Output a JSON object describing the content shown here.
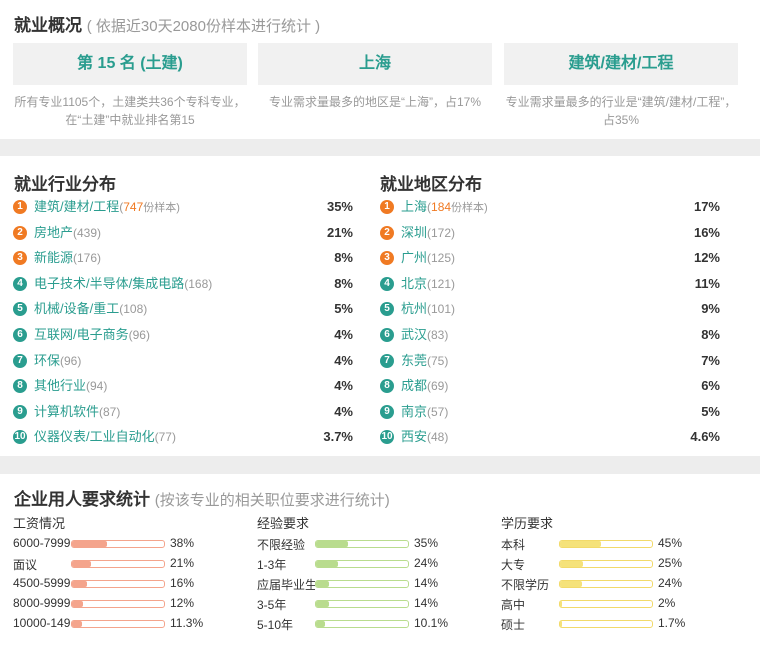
{
  "overview": {
    "title": "就业概况",
    "subtitle": "( 依据近30天2080份样本进行统计 )",
    "boxes": [
      {
        "label": "第 15 名 (土建)",
        "desc": "所有专业1105个，土建类共36个专科专业，在“土建”中就业排名第15"
      },
      {
        "label": "上海",
        "desc": "专业需求量最多的地区是“上海”，占17%"
      },
      {
        "label": "建筑/建材/工程",
        "desc": "专业需求量最多的行业是“建筑/建材/工程”，占35%"
      }
    ]
  },
  "industry": {
    "title": "就业行业分布",
    "sample_suffix": "份样本)",
    "items": [
      {
        "rank": "1",
        "name": "建筑/建材/工程",
        "count": "747",
        "pct": "35%"
      },
      {
        "rank": "2",
        "name": "房地产",
        "count": "(439)",
        "pct": "21%"
      },
      {
        "rank": "3",
        "name": "新能源",
        "count": "(176)",
        "pct": "8%"
      },
      {
        "rank": "4",
        "name": "电子技术/半导体/集成电路",
        "count": "(168)",
        "pct": "8%"
      },
      {
        "rank": "5",
        "name": "机械/设备/重工",
        "count": "(108)",
        "pct": "5%"
      },
      {
        "rank": "6",
        "name": "互联网/电子商务",
        "count": "(96)",
        "pct": "4%"
      },
      {
        "rank": "7",
        "name": "环保",
        "count": "(96)",
        "pct": "4%"
      },
      {
        "rank": "8",
        "name": "其他行业",
        "count": "(94)",
        "pct": "4%"
      },
      {
        "rank": "9",
        "name": "计算机软件",
        "count": "(87)",
        "pct": "4%"
      },
      {
        "rank": "10",
        "name": "仪器仪表/工业自动化",
        "count": "(77)",
        "pct": "3.7%"
      }
    ]
  },
  "region": {
    "title": "就业地区分布",
    "sample_suffix": "份样本)",
    "items": [
      {
        "rank": "1",
        "name": "上海",
        "count": "184",
        "pct": "17%"
      },
      {
        "rank": "2",
        "name": "深圳",
        "count": "(172)",
        "pct": "16%"
      },
      {
        "rank": "3",
        "name": "广州",
        "count": "(125)",
        "pct": "12%"
      },
      {
        "rank": "4",
        "name": "北京",
        "count": "(121)",
        "pct": "11%"
      },
      {
        "rank": "5",
        "name": "杭州",
        "count": "(101)",
        "pct": "9%"
      },
      {
        "rank": "6",
        "name": "武汉",
        "count": "(83)",
        "pct": "8%"
      },
      {
        "rank": "7",
        "name": "东莞",
        "count": "(75)",
        "pct": "7%"
      },
      {
        "rank": "8",
        "name": "成都",
        "count": "(69)",
        "pct": "6%"
      },
      {
        "rank": "9",
        "name": "南京",
        "count": "(57)",
        "pct": "5%"
      },
      {
        "rank": "10",
        "name": "西安",
        "count": "(48)",
        "pct": "4.6%"
      }
    ]
  },
  "requirements": {
    "title": "企业用人要求统计",
    "subtitle": "(按该专业的相关职位要求进行统计)",
    "columns": [
      {
        "title": "工资情况",
        "color": "#f4a48c",
        "border": "#f4a48c",
        "rows": [
          {
            "label": "6000-7999",
            "value": 38,
            "pct": "38%"
          },
          {
            "label": "面议",
            "value": 21,
            "pct": "21%"
          },
          {
            "label": "4500-5999",
            "value": 16,
            "pct": "16%"
          },
          {
            "label": "8000-9999",
            "value": 12,
            "pct": "12%"
          },
          {
            "label": "10000-149",
            "value": 11.3,
            "pct": "11.3%"
          }
        ]
      },
      {
        "title": "经验要求",
        "color": "#b9dc8e",
        "border": "#b9dc8e",
        "rows": [
          {
            "label": "不限经验",
            "value": 35,
            "pct": "35%"
          },
          {
            "label": "1-3年",
            "value": 24,
            "pct": "24%"
          },
          {
            "label": "应届毕业生",
            "value": 14,
            "pct": "14%"
          },
          {
            "label": "3-5年",
            "value": 14,
            "pct": "14%"
          },
          {
            "label": "5-10年",
            "value": 10.1,
            "pct": "10.1%"
          }
        ]
      },
      {
        "title": "学历要求",
        "color": "#f5e27a",
        "border": "#f2da6a",
        "rows": [
          {
            "label": "本科",
            "value": 45,
            "pct": "45%"
          },
          {
            "label": "大专",
            "value": 25,
            "pct": "25%"
          },
          {
            "label": "不限学历",
            "value": 24,
            "pct": "24%"
          },
          {
            "label": "高中",
            "value": 2,
            "pct": "2%"
          },
          {
            "label": "硕士",
            "value": 1.7,
            "pct": "1.7%"
          }
        ]
      }
    ]
  }
}
